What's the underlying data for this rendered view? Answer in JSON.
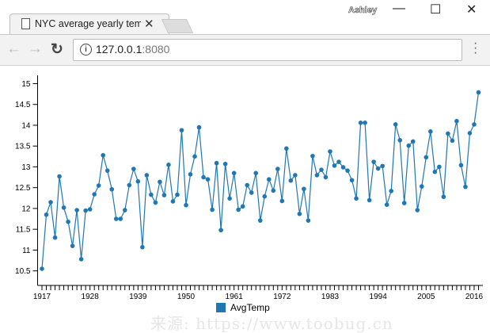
{
  "browser": {
    "tab_title": "NYC average yearly temp",
    "user": "Ashley",
    "url_host": "127.0.0.1",
    "url_port": ":8080",
    "icons": [
      "page-icon",
      "close-icon",
      "back-icon",
      "forward-icon",
      "reload-icon",
      "info-icon",
      "menu-icon",
      "minimize-icon",
      "maximize-icon",
      "window-close-icon"
    ]
  },
  "watermark": "来源: https://www.toobug.cn",
  "chart_data": {
    "type": "line",
    "title": "",
    "xlabel": "",
    "ylabel": "",
    "xlim": [
      1916,
      2018
    ],
    "ylim": [
      10.15,
      15.2
    ],
    "x_tick_labels": [
      "1917",
      "1928",
      "1939",
      "1950",
      "1961",
      "1972",
      "1983",
      "1994",
      "2005",
      "2016"
    ],
    "y_tick_labels": [
      "10.5",
      "11",
      "11.5",
      "12",
      "12.5",
      "13",
      "13.5",
      "14",
      "14.5",
      "15"
    ],
    "grid": false,
    "legend_position": "bottom",
    "color": "#1f77b4",
    "x_start": 1917,
    "series": [
      {
        "name": "AvgTemp",
        "values": [
          10.55,
          11.85,
          12.15,
          11.3,
          12.77,
          12.02,
          11.68,
          11.1,
          11.96,
          10.78,
          11.95,
          11.98,
          12.34,
          12.55,
          13.28,
          12.91,
          12.46,
          11.75,
          11.75,
          11.96,
          12.56,
          12.95,
          12.65,
          11.07,
          12.8,
          12.33,
          12.14,
          12.64,
          12.32,
          13.05,
          12.17,
          12.33,
          13.88,
          12.08,
          12.82,
          13.25,
          13.95,
          12.75,
          12.7,
          11.97,
          13.09,
          11.48,
          13.07,
          12.24,
          12.85,
          11.97,
          12.05,
          12.56,
          12.38,
          12.85,
          11.71,
          12.29,
          12.7,
          12.43,
          12.95,
          12.18,
          13.44,
          12.67,
          12.8,
          11.87,
          12.47,
          11.71,
          13.26,
          12.8,
          12.93,
          12.75,
          13.37,
          13.03,
          13.12,
          12.99,
          12.91,
          12.68,
          12.24,
          14.06,
          14.06,
          12.2,
          13.12,
          12.96,
          13.02,
          12.09,
          12.42,
          14.02,
          13.64,
          12.13,
          13.51,
          13.61,
          11.96,
          12.53,
          13.23,
          13.85,
          12.88,
          13.0,
          12.28,
          13.8,
          13.63,
          14.1,
          13.04,
          12.52,
          13.81,
          14.02,
          14.79
        ]
      }
    ]
  }
}
